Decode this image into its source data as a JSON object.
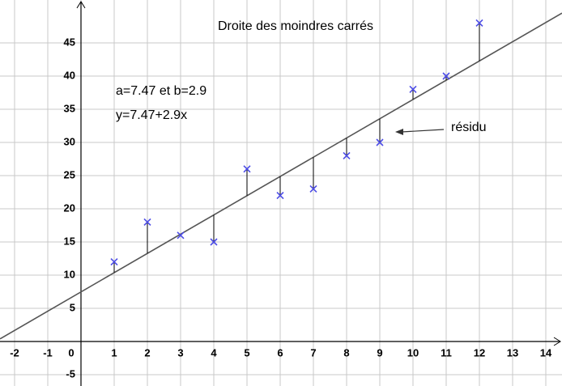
{
  "chart_data": {
    "type": "scatter",
    "title": "Droite des moindres carrés",
    "annotations": [
      "a=7.47 et b=2.9",
      "y=7.47+2.9x",
      "résidu"
    ],
    "x": [
      1,
      2,
      3,
      4,
      5,
      6,
      7,
      8,
      9,
      10,
      11,
      12
    ],
    "values": [
      12,
      18,
      16,
      15,
      26,
      22,
      23,
      28,
      30,
      38,
      40,
      48
    ],
    "color": "#4d4de6",
    "fit": {
      "intercept": 7.47,
      "slope": 2.9,
      "color": "#555555"
    },
    "xlim": [
      -2.439,
      14.488
    ],
    "ylim": [
      -6.707,
      51.463
    ],
    "xticks": [
      -2,
      -1,
      0,
      1,
      2,
      3,
      4,
      5,
      6,
      7,
      8,
      9,
      10,
      11,
      12,
      13,
      14
    ],
    "yticks": [
      -5,
      5,
      10,
      15,
      20,
      25,
      30,
      35,
      40,
      45
    ],
    "grid": true
  }
}
